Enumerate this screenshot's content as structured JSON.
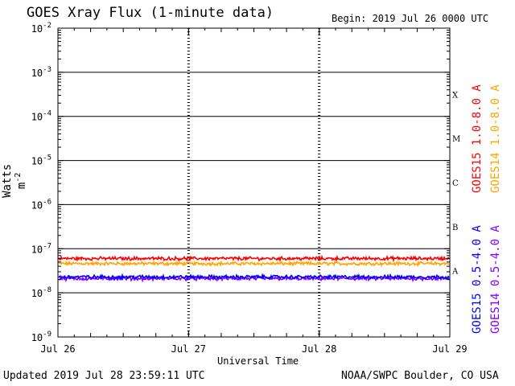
{
  "header": {
    "title": "GOES Xray Flux (1-minute data)",
    "begin": "Begin:  2019 Jul 26 0000 UTC"
  },
  "footer": {
    "updated": "Updated 2019 Jul 28 23:59:11 UTC",
    "credit": "NOAA/SWPC Boulder, CO USA"
  },
  "colors": {
    "goes15_long": "#ff0000",
    "goes14_long": "#ffa500",
    "goes15_short": "#0000ff",
    "goes14_short": "#8000ff"
  },
  "chart_data": {
    "type": "line",
    "xlabel": "Universal Time",
    "ylabel": "Watts m",
    "ylabel_superscript": "-2",
    "yscale": "log",
    "ylim": [
      1e-09,
      0.01
    ],
    "y_tick_labels": [
      {
        "base": "10",
        "exp": "-9"
      },
      {
        "base": "10",
        "exp": "-8"
      },
      {
        "base": "10",
        "exp": "-7"
      },
      {
        "base": "10",
        "exp": "-6"
      },
      {
        "base": "10",
        "exp": "-5"
      },
      {
        "base": "10",
        "exp": "-4"
      },
      {
        "base": "10",
        "exp": "-3"
      },
      {
        "base": "10",
        "exp": "-2"
      }
    ],
    "x_tick_labels": [
      "Jul 26",
      "Jul 27",
      "Jul 28",
      "Jul 29"
    ],
    "flare_classes": [
      {
        "label": "A",
        "level": 1e-08
      },
      {
        "label": "B",
        "level": 1e-07
      },
      {
        "label": "C",
        "level": 1e-06
      },
      {
        "label": "M",
        "level": 1e-05
      },
      {
        "label": "X",
        "level": 0.0001
      }
    ],
    "grid": "horizontal at each decade from 1e-8 to 1e-3",
    "series": [
      {
        "name": "GOES15 1.0-8.0 A",
        "color": "#ff0000",
        "level": 6e-08
      },
      {
        "name": "GOES14 1.0-8.0 A",
        "color": "#ffa500",
        "level": 4.6e-08
      },
      {
        "name": "GOES15 0.5-4.0 A",
        "color": "#0000ff",
        "level": 2.3e-08
      },
      {
        "name": "GOES14 0.5-4.0 A",
        "color": "#8000ff",
        "level": 2.1e-08
      }
    ]
  }
}
